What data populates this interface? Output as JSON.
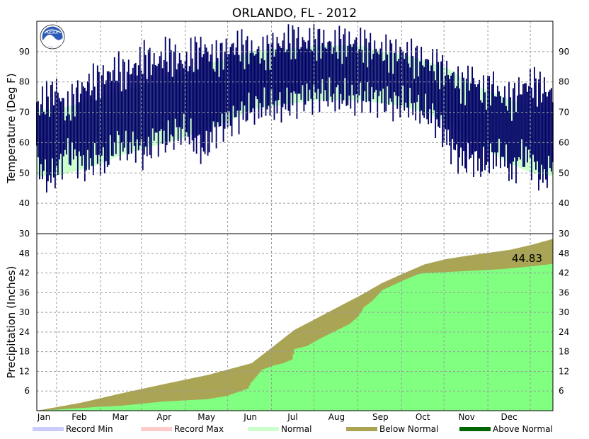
{
  "chart_data": {
    "type": "climate-summary",
    "title": "ORLANDO, FL - 2012",
    "months": [
      "Jan",
      "Feb",
      "Mar",
      "Apr",
      "May",
      "Jun",
      "Jul",
      "Aug",
      "Sep",
      "Oct",
      "Nov",
      "Dec"
    ],
    "month_start_days": [
      1,
      32,
      61,
      92,
      122,
      153,
      183,
      214,
      245,
      275,
      306,
      336
    ],
    "days_in_year": 366,
    "colors": {
      "record_min": "#ccccff",
      "record_max": "#ffcccc",
      "normal": "#ccffcc",
      "below_normal": "#aaa555",
      "above_normal": "#006600",
      "observed_temp": "#000066",
      "observed_precip": "#80ff80",
      "grid": "#999999"
    },
    "temperature": {
      "ylabel": "Temperature (Deg F)",
      "ylim": [
        30,
        100
      ],
      "yticks": [
        40,
        50,
        60,
        70,
        80,
        90
      ],
      "normal_points": {
        "day": [
          1,
          15,
          32,
          46,
          61,
          76,
          92,
          107,
          122,
          137,
          153,
          168,
          183,
          199,
          214,
          230,
          245,
          260,
          275,
          290,
          306,
          321,
          336,
          351,
          366
        ],
        "high": [
          71,
          71,
          73,
          75,
          77,
          79,
          81,
          83,
          86,
          88,
          90,
          91,
          91,
          92,
          92,
          92,
          90,
          89,
          87,
          85,
          80,
          77,
          74,
          72,
          71
        ],
        "low": [
          49,
          49,
          51,
          53,
          56,
          58,
          60,
          62,
          65,
          67,
          71,
          72,
          73,
          74,
          74,
          74,
          73,
          72,
          70,
          67,
          61,
          57,
          53,
          50,
          49
        ]
      },
      "observed_points": {
        "day": [
          1,
          8,
          15,
          22,
          29,
          36,
          43,
          50,
          57,
          64,
          71,
          78,
          85,
          92,
          99,
          106,
          113,
          120,
          127,
          134,
          141,
          148,
          155,
          162,
          169,
          176,
          183,
          190,
          197,
          204,
          211,
          218,
          225,
          232,
          239,
          246,
          253,
          260,
          267,
          274,
          281,
          288,
          295,
          302,
          309,
          316,
          323,
          330,
          337,
          344,
          351,
          358,
          366
        ],
        "high": [
          72,
          74,
          78,
          70,
          76,
          79,
          80,
          82,
          84,
          83,
          85,
          88,
          86,
          89,
          88,
          86,
          90,
          91,
          87,
          90,
          92,
          91,
          90,
          89,
          92,
          93,
          94,
          93,
          94,
          93,
          92,
          93,
          93,
          92,
          91,
          90,
          89,
          90,
          88,
          87,
          86,
          84,
          82,
          78,
          82,
          76,
          79,
          75,
          74,
          78,
          80,
          78,
          76
        ],
        "low": [
          54,
          48,
          50,
          57,
          55,
          52,
          55,
          53,
          60,
          58,
          59,
          56,
          62,
          61,
          63,
          64,
          60,
          57,
          64,
          66,
          68,
          70,
          71,
          72,
          72,
          72,
          74,
          75,
          75,
          76,
          75,
          75,
          74,
          75,
          75,
          74,
          73,
          73,
          72,
          70,
          69,
          63,
          58,
          54,
          55,
          52,
          55,
          56,
          50,
          56,
          54,
          48,
          52
        ]
      }
    },
    "precipitation": {
      "ylabel": "Precipitation (Inches)",
      "ylim": [
        0,
        54
      ],
      "yticks": [
        6,
        12,
        18,
        24,
        30,
        36,
        42,
        48
      ],
      "top_label": "30",
      "normal_cumulative": {
        "day": [
          1,
          32,
          61,
          92,
          122,
          153,
          168,
          183,
          199,
          214,
          230,
          245,
          260,
          275,
          290,
          306,
          321,
          336,
          351,
          366
        ],
        "value": [
          0,
          2.4,
          5.3,
          8.2,
          10.9,
          14.5,
          19.5,
          24.6,
          28.2,
          31.6,
          35.2,
          38.9,
          41.8,
          44.6,
          46.2,
          47.3,
          48.2,
          49.1,
          50.6,
          52.4
        ]
      },
      "observed_cumulative": {
        "day": [
          1,
          32,
          45,
          60,
          90,
          121,
          135,
          150,
          152,
          160,
          168,
          175,
          181,
          183,
          192,
          200,
          214,
          222,
          228,
          232,
          238,
          245,
          252,
          260,
          270,
          275,
          300,
          330,
          345,
          360,
          366
        ],
        "value": [
          0,
          0.8,
          1.2,
          1.5,
          2.8,
          3.5,
          4.5,
          6.8,
          8.5,
          12.5,
          13.8,
          14.5,
          15.6,
          18.8,
          19.8,
          21.8,
          24.8,
          26.5,
          28.8,
          31.6,
          33.6,
          36.8,
          38.2,
          39.8,
          41.6,
          42.0,
          42.5,
          43.2,
          43.8,
          44.5,
          44.83
        ]
      },
      "annotation": "44.83"
    },
    "legend": [
      {
        "label": "Record Min",
        "color": "#ccccff"
      },
      {
        "label": "Record Max",
        "color": "#ffcccc"
      },
      {
        "label": "Normal",
        "color": "#ccffcc"
      },
      {
        "label": "Below Normal",
        "color": "#aaa555"
      },
      {
        "label": "Above Normal",
        "color": "#006600"
      }
    ]
  }
}
